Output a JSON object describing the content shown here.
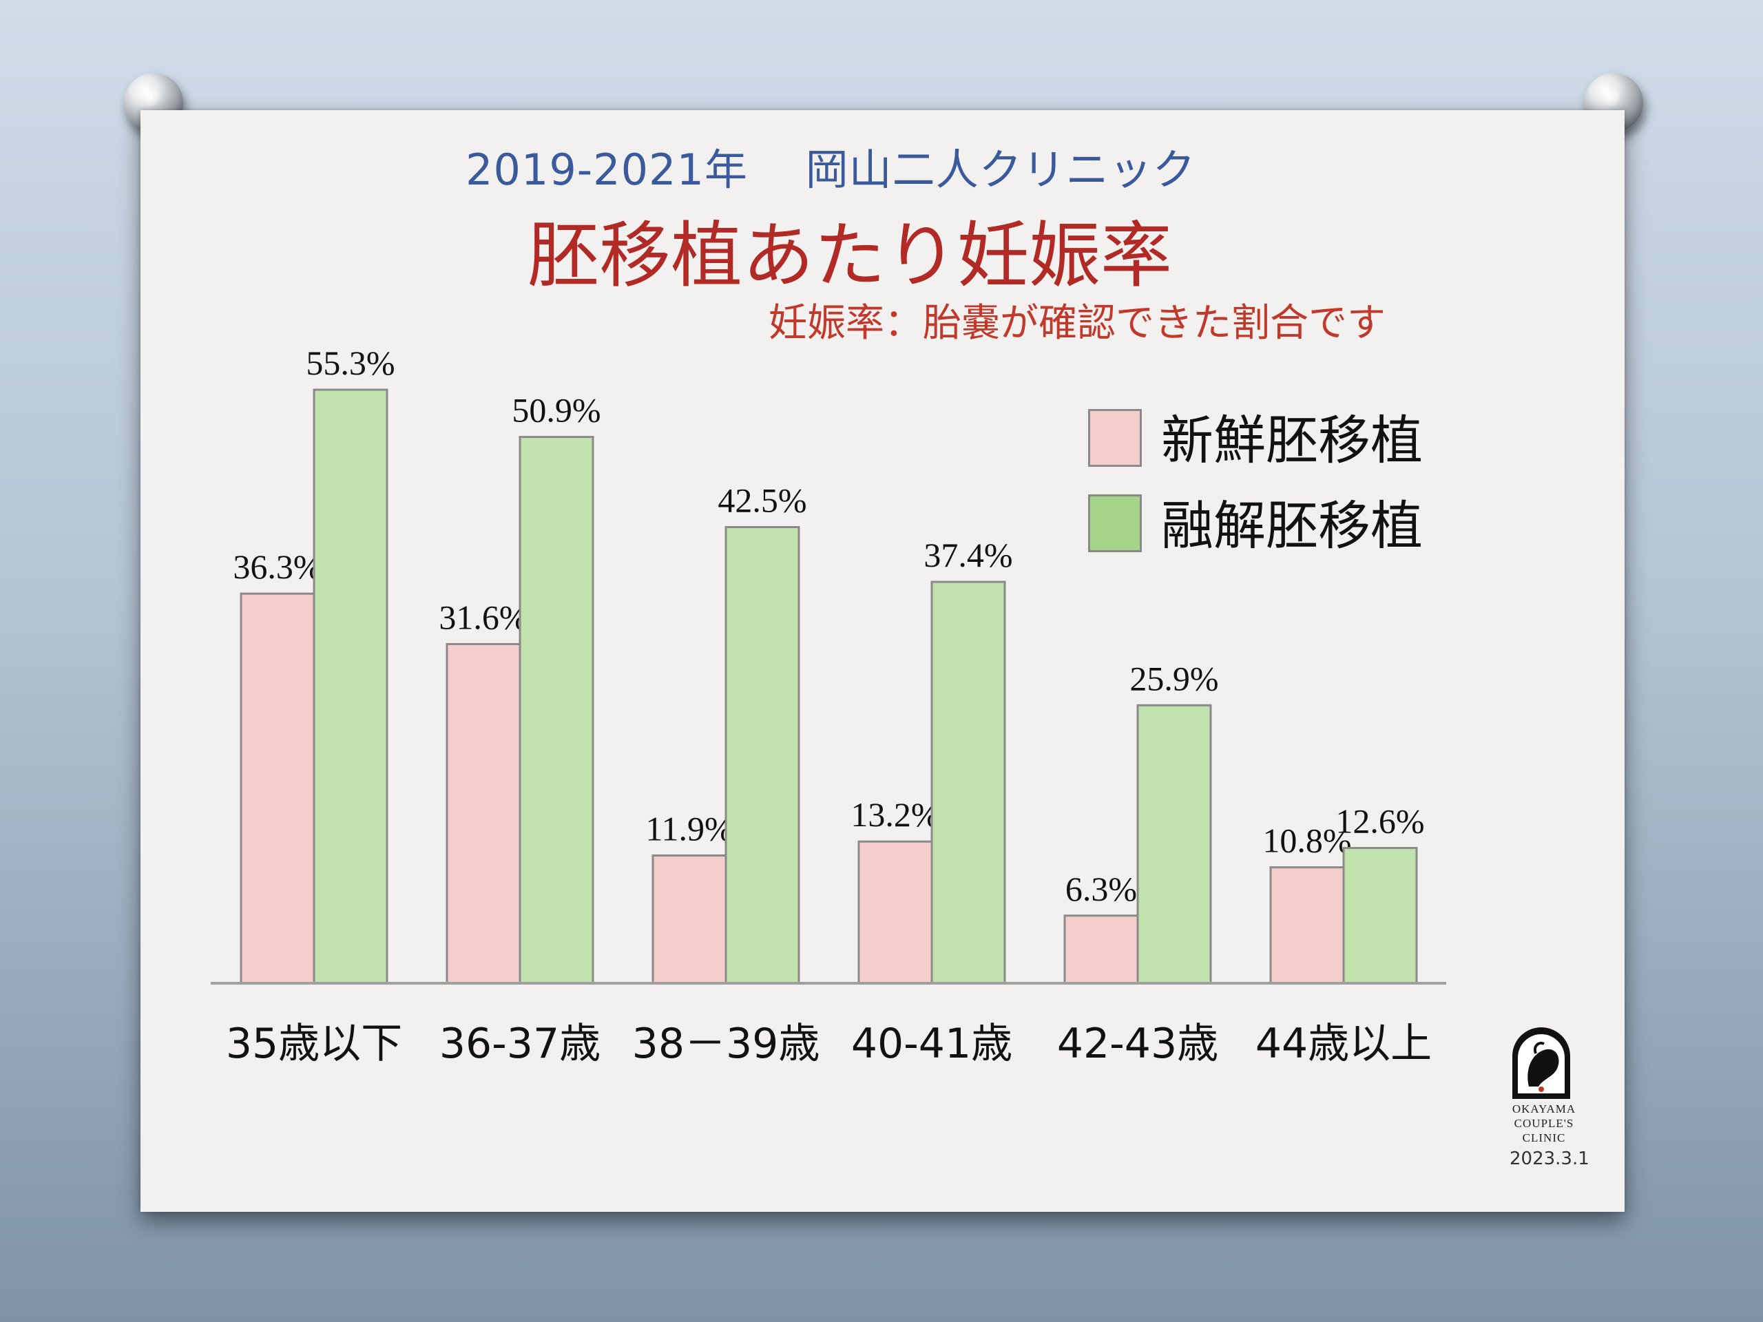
{
  "header": {
    "year_clinic": "2019-2021年　 岡山二人クリニック",
    "title": "胚移植あたり妊娠率",
    "subtitle": "妊娠率：胎嚢が確認できた割合です"
  },
  "colors": {
    "fresh": "#f5cdcc",
    "frozen": "#c2e2ad",
    "frozen_legend": "#a6d48a",
    "border": "#8a8a8a",
    "axis": "#a0a0a0"
  },
  "chart_data": {
    "type": "bar",
    "categories": [
      "35歳以下",
      "36-37歳",
      "38－39歳",
      "40-41歳",
      "42-43歳",
      "44歳以上"
    ],
    "series": [
      {
        "name": "新鮮胚移植",
        "values": [
          36.3,
          31.6,
          11.9,
          13.2,
          6.3,
          10.8
        ],
        "labels": [
          "36.3%",
          "31.6%",
          "11.9%",
          "13.2%",
          "6.3%",
          "10.8%"
        ]
      },
      {
        "name": "融解胚移植",
        "values": [
          55.3,
          50.9,
          42.5,
          37.4,
          25.9,
          12.6
        ],
        "labels": [
          "55.3%",
          "50.9%",
          "42.5%",
          "37.4%",
          "25.9%",
          "12.6%"
        ]
      }
    ],
    "unit": "%",
    "legend_position": "top-right",
    "grid": false
  },
  "logo": {
    "text_lines": [
      "OKAYAMA",
      "COUPLE'S",
      "CLINIC"
    ],
    "date": "2023.3.1"
  }
}
